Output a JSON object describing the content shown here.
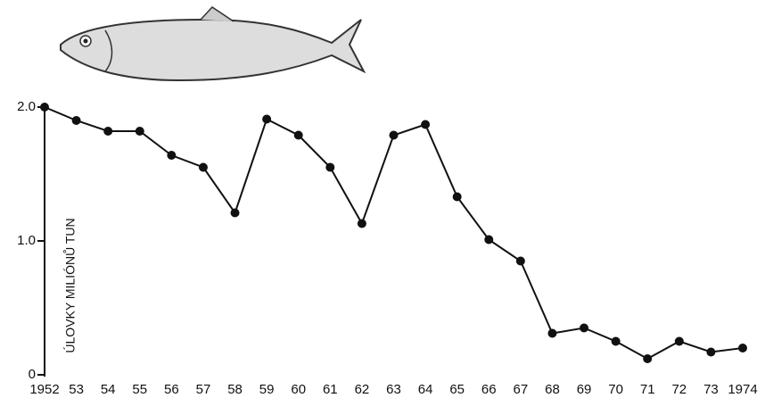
{
  "chart_data": {
    "type": "line",
    "y_label": "ÚLOVKY MILIÓNŮ TUN",
    "categories": [
      "1952",
      "53",
      "54",
      "55",
      "56",
      "57",
      "58",
      "59",
      "60",
      "61",
      "62",
      "63",
      "64",
      "65",
      "66",
      "67",
      "68",
      "69",
      "70",
      "71",
      "72",
      "73",
      "1974"
    ],
    "series": [
      {
        "color": "#111111",
        "values": [
          2.0,
          1.9,
          1.82,
          1.82,
          1.64,
          1.55,
          1.21,
          1.91,
          1.79,
          1.55,
          1.13,
          1.79,
          1.87,
          1.33,
          1.01,
          0.85,
          0.31,
          0.35,
          0.25,
          0.12,
          0.25,
          0.17,
          0.2
        ]
      }
    ],
    "ylim": [
      0,
      2.0
    ],
    "yticks": [
      0,
      {
        "value": 1,
        "label": "1.0"
      },
      {
        "value": 2,
        "label": "2.0"
      }
    ],
    "grid": false
  }
}
